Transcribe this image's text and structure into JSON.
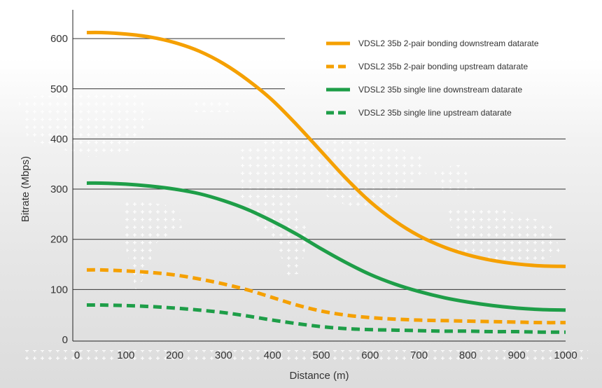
{
  "chart_data": {
    "type": "line",
    "title": "",
    "xlabel": "Distance (m)",
    "ylabel": "Bitrate (Mbps)",
    "xlim": [
      0,
      1000
    ],
    "ylim": [
      0,
      650
    ],
    "x_ticks": [
      0,
      100,
      200,
      300,
      400,
      500,
      600,
      700,
      800,
      900,
      1000
    ],
    "y_ticks": [
      0,
      100,
      200,
      300,
      400,
      500,
      600
    ],
    "grid": "horizontal",
    "legend_position": "top-right",
    "series": [
      {
        "name": "VDSL2 35b 2-pair bonding downstream datarate",
        "color": "#f5a000",
        "dash": "solid",
        "x": [
          20,
          50,
          100,
          150,
          200,
          250,
          300,
          350,
          400,
          450,
          500,
          550,
          600,
          650,
          700,
          750,
          800,
          850,
          900,
          950,
          1000
        ],
        "y": [
          612,
          612,
          609,
          603,
          592,
          575,
          550,
          517,
          477,
          428,
          375,
          322,
          275,
          237,
          207,
          185,
          169,
          158,
          151,
          147,
          146
        ]
      },
      {
        "name": "VDSL2 35b 2-pair bonding upstream datarate",
        "color": "#f5a000",
        "dash": "dashed",
        "x": [
          20,
          50,
          100,
          150,
          200,
          250,
          300,
          350,
          400,
          450,
          500,
          550,
          600,
          650,
          700,
          750,
          800,
          850,
          900,
          950,
          1000
        ],
        "y": [
          139,
          139,
          137,
          134,
          129,
          121,
          111,
          99,
          84,
          69,
          57,
          49,
          44,
          41,
          39,
          38,
          37,
          36,
          35,
          34,
          34
        ]
      },
      {
        "name": "VDSL2 35b single line downstream datarate",
        "color": "#1e9e48",
        "dash": "solid",
        "x": [
          20,
          50,
          100,
          150,
          200,
          250,
          300,
          350,
          400,
          450,
          500,
          550,
          600,
          650,
          700,
          750,
          800,
          850,
          900,
          950,
          1000
        ],
        "y": [
          312,
          312,
          310,
          306,
          300,
          291,
          277,
          259,
          236,
          210,
          181,
          154,
          130,
          111,
          96,
          84,
          75,
          68,
          63,
          60,
          59
        ]
      },
      {
        "name": "VDSL2 35b single line upstream datarate",
        "color": "#1e9e48",
        "dash": "dashed",
        "x": [
          20,
          50,
          100,
          150,
          200,
          250,
          300,
          350,
          400,
          450,
          500,
          550,
          600,
          650,
          700,
          750,
          800,
          850,
          900,
          950,
          1000
        ],
        "y": [
          69,
          69,
          68,
          66,
          63,
          59,
          54,
          47,
          39,
          32,
          26,
          22,
          20,
          19,
          18,
          17,
          17,
          16,
          16,
          15,
          15
        ]
      }
    ]
  }
}
